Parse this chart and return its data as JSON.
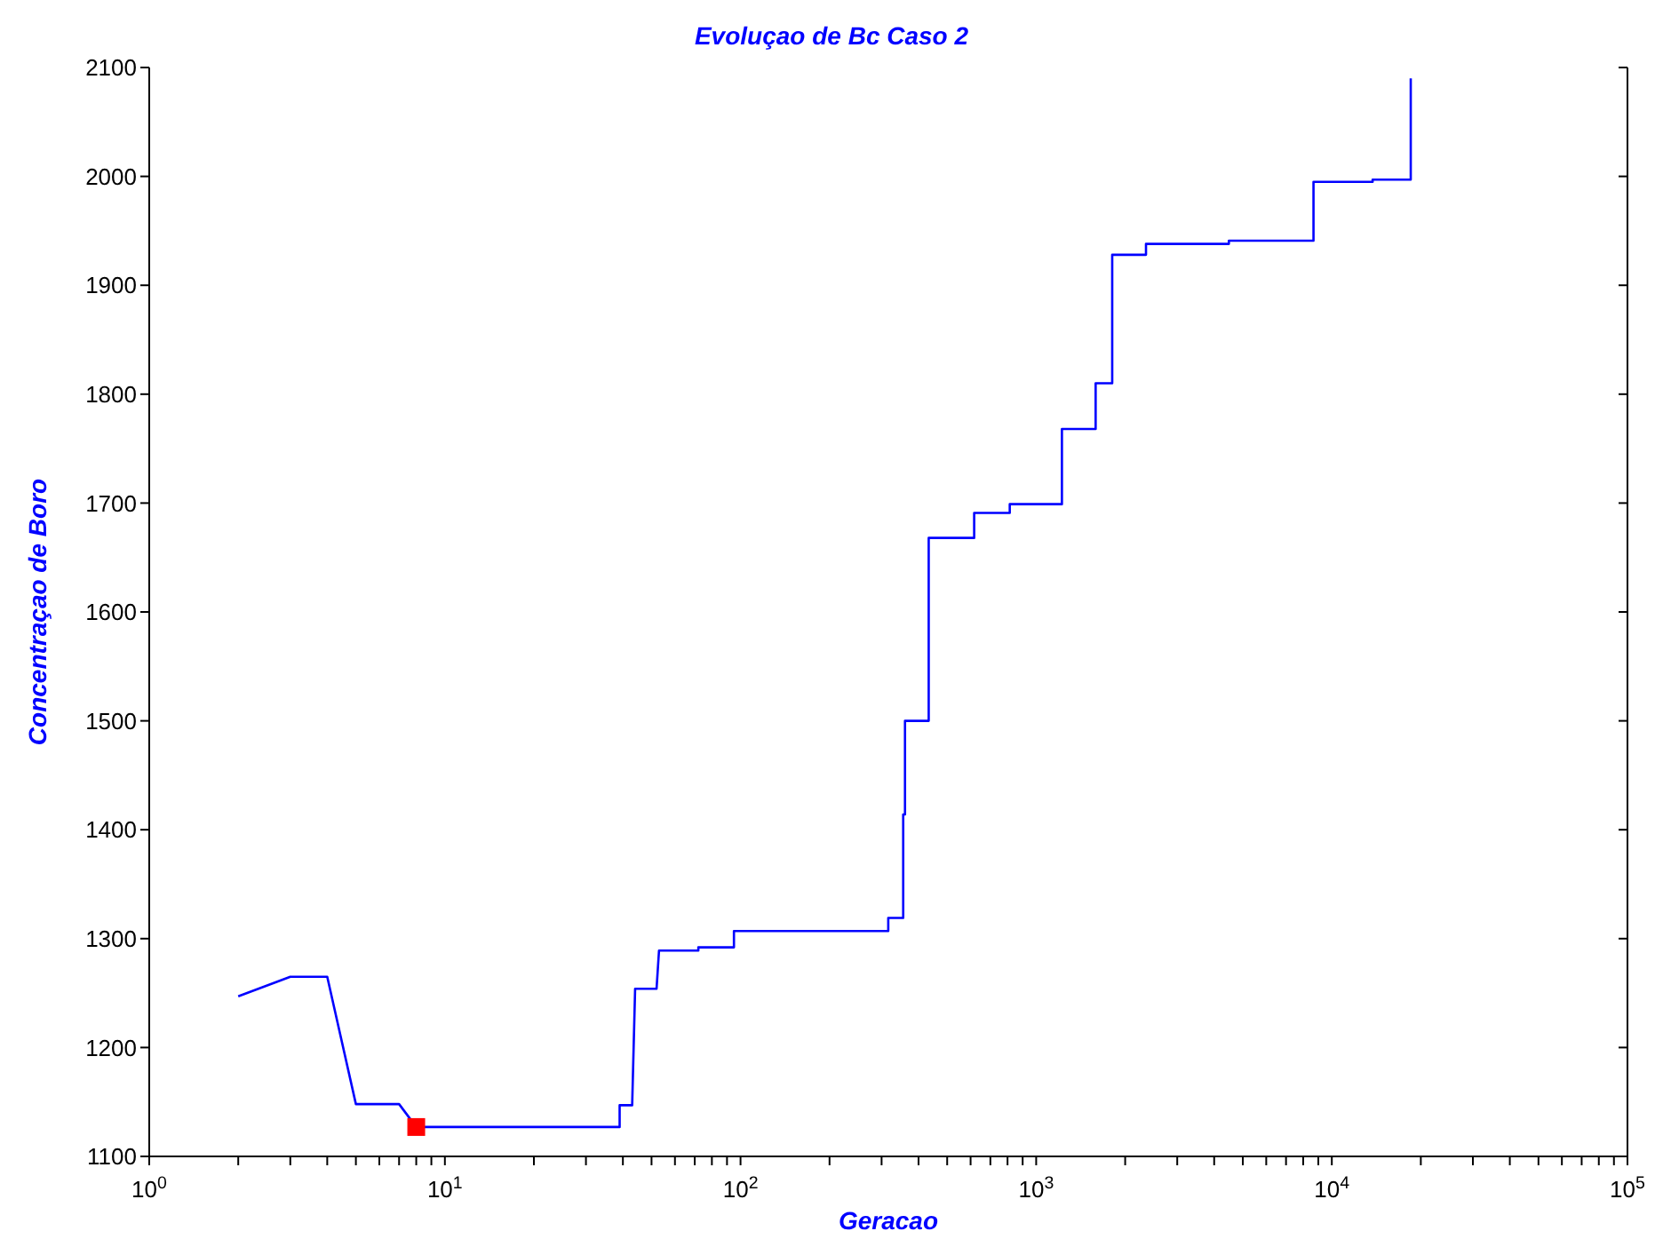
{
  "chart_data": {
    "type": "line",
    "title": "Evoluçao de Bc Caso 2",
    "xlabel": "Geracao",
    "ylabel": "Concentraçao de Boro",
    "log": "x",
    "grid": false,
    "marker": "none",
    "line_style": "solid",
    "xlim": [
      1,
      100000
    ],
    "ylim": [
      1100,
      2100
    ],
    "xticks": [
      {
        "value": 1,
        "label": "10$^{0}$"
      },
      {
        "value": 2,
        "label": null
      },
      {
        "value": 3,
        "label": null
      },
      {
        "value": 4,
        "label": null
      },
      {
        "value": 5,
        "label": null
      },
      {
        "value": 6,
        "label": null
      },
      {
        "value": 7,
        "label": null
      },
      {
        "value": 8,
        "label": null
      },
      {
        "value": 9,
        "label": null
      },
      {
        "value": 10,
        "label": "10$^{1}$"
      },
      {
        "value": 20,
        "label": null
      },
      {
        "value": 30,
        "label": null
      },
      {
        "value": 40,
        "label": null
      },
      {
        "value": 50,
        "label": null
      },
      {
        "value": 60,
        "label": null
      },
      {
        "value": 70,
        "label": null
      },
      {
        "value": 80,
        "label": null
      },
      {
        "value": 90,
        "label": null
      },
      {
        "value": 100,
        "label": "10$^{2}$"
      },
      {
        "value": 200,
        "label": null
      },
      {
        "value": 300,
        "label": null
      },
      {
        "value": 400,
        "label": null
      },
      {
        "value": 500,
        "label": null
      },
      {
        "value": 600,
        "label": null
      },
      {
        "value": 700,
        "label": null
      },
      {
        "value": 800,
        "label": null
      },
      {
        "value": 900,
        "label": null
      },
      {
        "value": 1000,
        "label": "10$^{3}$"
      },
      {
        "value": 2000,
        "label": null
      },
      {
        "value": 3000,
        "label": null
      },
      {
        "value": 4000,
        "label": null
      },
      {
        "value": 5000,
        "label": null
      },
      {
        "value": 6000,
        "label": null
      },
      {
        "value": 7000,
        "label": null
      },
      {
        "value": 8000,
        "label": null
      },
      {
        "value": 9000,
        "label": null
      },
      {
        "value": 10000,
        "label": "10$^{4}$"
      },
      {
        "value": 20000,
        "label": null
      },
      {
        "value": 30000,
        "label": null
      },
      {
        "value": 40000,
        "label": null
      },
      {
        "value": 50000,
        "label": null
      },
      {
        "value": 60000,
        "label": null
      },
      {
        "value": 70000,
        "label": null
      },
      {
        "value": 80000,
        "label": null
      },
      {
        "value": 90000,
        "label": null
      },
      {
        "value": 100000,
        "label": "10$^{5}$"
      }
    ],
    "yticks": [
      1100,
      1200,
      1300,
      1400,
      1500,
      1600,
      1700,
      1800,
      1900,
      2000,
      2100
    ],
    "series": [
      {
        "color": "#0000ff",
        "x": [
          2,
          3,
          4,
          5,
          7,
          8,
          39,
          39,
          43,
          44,
          52,
          53,
          72,
          72,
          95,
          95,
          316,
          316,
          355,
          355,
          360,
          360,
          433,
          433,
          617,
          617,
          814,
          814,
          1222,
          1222,
          1589,
          1589,
          1808,
          1808,
          2352,
          2352,
          4485,
          4485,
          8670,
          8670,
          13740,
          13740,
          18490,
          18490
        ],
        "values": [
          1247,
          1265,
          1265,
          1148,
          1148,
          1127,
          1127,
          1147,
          1147,
          1254,
          1254,
          1289,
          1289,
          1292,
          1292,
          1307,
          1307,
          1319,
          1319,
          1414,
          1414,
          1500,
          1500,
          1668,
          1668,
          1691,
          1691,
          1699,
          1699,
          1768,
          1768,
          1810,
          1810,
          1928,
          1928,
          1938,
          1938,
          1941,
          1941,
          1995,
          1995,
          1997,
          1997,
          2090
        ]
      },
      {
        "type": "scatter",
        "color": "#ff0000",
        "marker": "square",
        "x": [
          8
        ],
        "values": [
          1127
        ]
      }
    ]
  }
}
